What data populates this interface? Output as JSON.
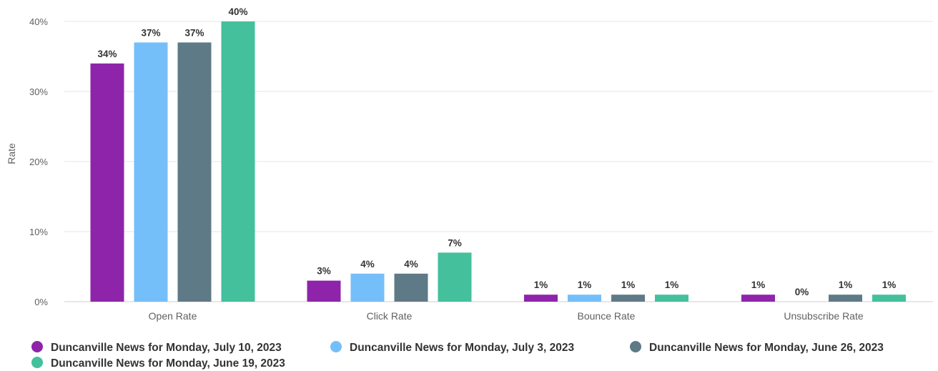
{
  "chart_data": {
    "type": "bar",
    "categories": [
      "Open Rate",
      "Click Rate",
      "Bounce Rate",
      "Unsubscribe Rate"
    ],
    "series": [
      {
        "name": "Duncanville News for Monday, July 10, 2023",
        "values": [
          34,
          3,
          1,
          1
        ],
        "labels": [
          "34%",
          "3%",
          "1%",
          "1%"
        ],
        "color": "#8e24aa"
      },
      {
        "name": "Duncanville News for Monday, July 3, 2023",
        "values": [
          37,
          4,
          1,
          0
        ],
        "labels": [
          "37%",
          "4%",
          "1%",
          "0%"
        ],
        "color": "#74bffa"
      },
      {
        "name": "Duncanville News for Monday, June 26, 2023",
        "values": [
          37,
          4,
          1,
          1
        ],
        "labels": [
          "37%",
          "4%",
          "1%",
          "1%"
        ],
        "color": "#5f7a87"
      },
      {
        "name": "Duncanville News for Monday, June 19, 2023",
        "values": [
          40,
          7,
          1,
          1
        ],
        "labels": [
          "40%",
          "7%",
          "1%",
          "1%"
        ],
        "color": "#44c09c"
      }
    ],
    "ylabel": "Rate",
    "xlabel": "",
    "ylim": [
      0,
      40
    ],
    "yticks": [
      "0%",
      "10%",
      "20%",
      "30%",
      "40%"
    ],
    "ytick_values": [
      0,
      10,
      20,
      30,
      40
    ],
    "grid": true,
    "legend_position": "bottom-left"
  }
}
